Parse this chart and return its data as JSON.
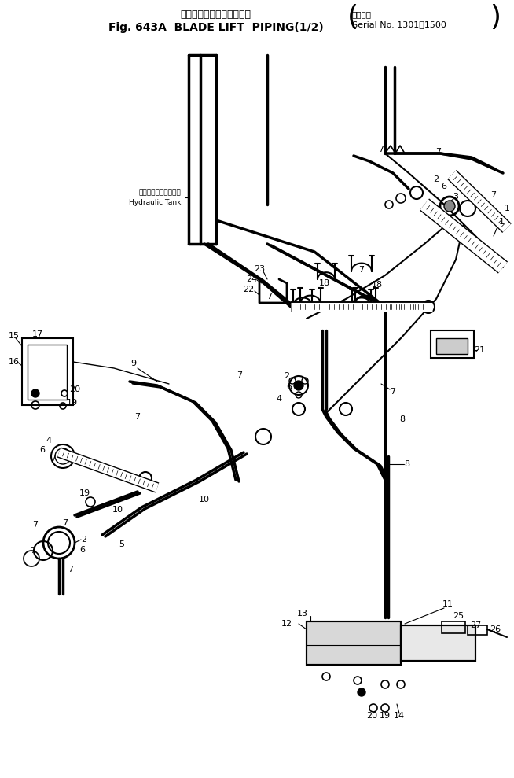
{
  "title_japanese": "ブレードリフトバイピング",
  "title_english": "Fig. 643A  BLADE LIFT  PIPING(1/2)",
  "serial_label_japanese": "適用号機",
  "serial_label_english": "Serial No. 1301～1500",
  "bg_color": "#ffffff",
  "fg_color": "#000000",
  "fig_width": 6.54,
  "fig_height": 9.89,
  "dpi": 100,
  "hydraulic_tank_jp": "ハイドロリックタンク",
  "hydraulic_tank_en": "Hydraulic Tank"
}
